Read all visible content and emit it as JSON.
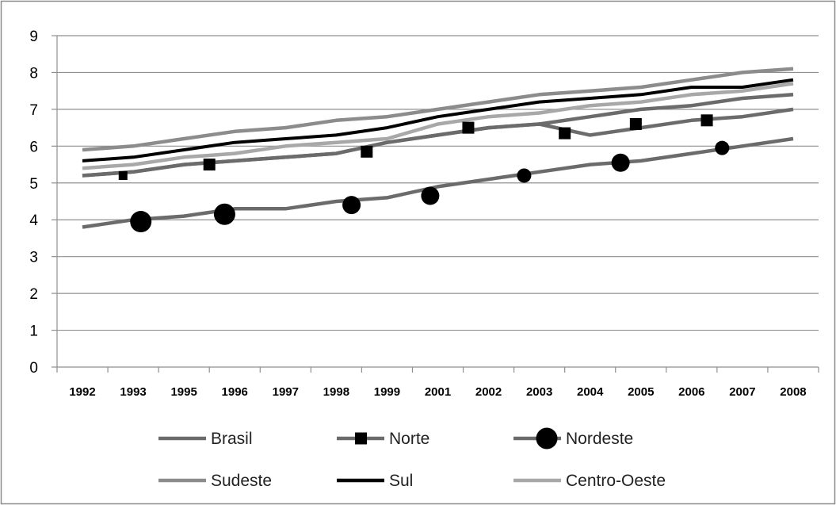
{
  "chart_data": {
    "type": "line",
    "title": "",
    "xlabel": "",
    "ylabel": "",
    "ylim": [
      0,
      9
    ],
    "yticks": [
      0,
      1,
      2,
      3,
      4,
      5,
      6,
      7,
      8,
      9
    ],
    "grid": true,
    "legend_position": "bottom",
    "categories": [
      "1992",
      "1993",
      "1995",
      "1996",
      "1997",
      "1998",
      "1999",
      "2001",
      "2002",
      "2003",
      "2004",
      "2005",
      "2006",
      "2007",
      "2008"
    ],
    "series": [
      {
        "name": "Brasil",
        "color": "#6b6b6b",
        "marker": "none",
        "values": [
          5.2,
          5.3,
          5.5,
          5.6,
          5.7,
          5.8,
          6.1,
          6.3,
          6.5,
          6.6,
          6.8,
          7.0,
          7.1,
          7.3,
          7.4
        ]
      },
      {
        "name": "Norte",
        "color": "#6b6b6b",
        "marker": "square",
        "values": [
          5.2,
          5.3,
          5.5,
          5.6,
          5.7,
          5.8,
          6.1,
          6.3,
          6.5,
          6.6,
          6.3,
          6.5,
          6.7,
          6.8,
          7.0
        ],
        "marker_points": [
          {
            "x": 1992.8,
            "y": 5.2,
            "size": "small"
          },
          {
            "x": 1995.5,
            "y": 5.5,
            "size": "large"
          },
          {
            "x": 1998.6,
            "y": 5.85,
            "size": "large"
          },
          {
            "x": 2001.6,
            "y": 6.5,
            "size": "large"
          },
          {
            "x": 2003.5,
            "y": 6.35,
            "size": "large"
          },
          {
            "x": 2004.9,
            "y": 6.6,
            "size": "large"
          },
          {
            "x": 2006.3,
            "y": 6.7,
            "size": "large"
          }
        ]
      },
      {
        "name": "Nordeste",
        "color": "#6b6b6b",
        "marker": "circle",
        "values": [
          3.8,
          4.0,
          4.1,
          4.3,
          4.3,
          4.5,
          4.6,
          4.9,
          5.1,
          5.3,
          5.5,
          5.6,
          5.8,
          6.0,
          6.2
        ],
        "marker_points": [
          {
            "x": 1993.3,
            "y": 3.95,
            "size": "large"
          },
          {
            "x": 1995.8,
            "y": 4.15,
            "size": "large"
          },
          {
            "x": 1998.3,
            "y": 4.4,
            "size": "medium"
          },
          {
            "x": 2000.7,
            "y": 4.65,
            "size": "medium"
          },
          {
            "x": 2002.7,
            "y": 5.2,
            "size": "small"
          },
          {
            "x": 2004.6,
            "y": 5.55,
            "size": "medium"
          },
          {
            "x": 2006.6,
            "y": 5.95,
            "size": "small"
          }
        ]
      },
      {
        "name": "Sudeste",
        "color": "#8c8c8c",
        "marker": "none",
        "values": [
          5.9,
          6.0,
          6.2,
          6.4,
          6.5,
          6.7,
          6.8,
          7.0,
          7.2,
          7.4,
          7.5,
          7.6,
          7.8,
          8.0,
          8.1
        ]
      },
      {
        "name": "Sul",
        "color": "#000000",
        "marker": "none",
        "values": [
          5.6,
          5.7,
          5.9,
          6.1,
          6.2,
          6.3,
          6.5,
          6.8,
          7.0,
          7.2,
          7.3,
          7.4,
          7.6,
          7.6,
          7.8
        ]
      },
      {
        "name": "Centro-Oeste",
        "color": "#a8a8a8",
        "marker": "none",
        "values": [
          5.4,
          5.5,
          5.7,
          5.8,
          6.0,
          6.1,
          6.2,
          6.6,
          6.8,
          6.9,
          7.1,
          7.2,
          7.4,
          7.5,
          7.7
        ]
      }
    ]
  }
}
